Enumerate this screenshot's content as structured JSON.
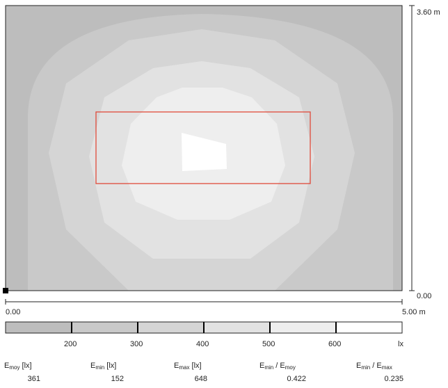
{
  "plan": {
    "x_start": "0.00",
    "x_end": "5.00 m",
    "y_start": "0.00",
    "y_end": "3.60 m"
  },
  "scale": {
    "ticks": [
      "200",
      "300",
      "400",
      "500",
      "600"
    ],
    "unit": "lx",
    "band_colors": [
      "#bdbdbd",
      "#c9c9c9",
      "#d5d5d5",
      "#e2e2e2",
      "#eeeeee",
      "#ffffff"
    ]
  },
  "stats": {
    "e_moy": {
      "label_base": "E",
      "label_sub": "moy",
      "label_unit": " [lx]",
      "value": "361"
    },
    "e_min": {
      "label_base": "E",
      "label_sub": "min",
      "label_unit": " [lx]",
      "value": "152"
    },
    "e_max": {
      "label_base": "E",
      "label_sub": "max",
      "label_unit": " [lx]",
      "value": "648"
    },
    "ratio_min_moy": {
      "num_base": "E",
      "num_sub": "min",
      "sep": " / ",
      "den_base": "E",
      "den_sub": "moy",
      "value": "0.422"
    },
    "ratio_min_max": {
      "num_base": "E",
      "num_sub": "min",
      "sep": " / ",
      "den_base": "E",
      "den_sub": "max",
      "value": "0.235"
    }
  },
  "colors": {
    "work_area_outline": "#e04a3a",
    "frame": "#222222"
  }
}
